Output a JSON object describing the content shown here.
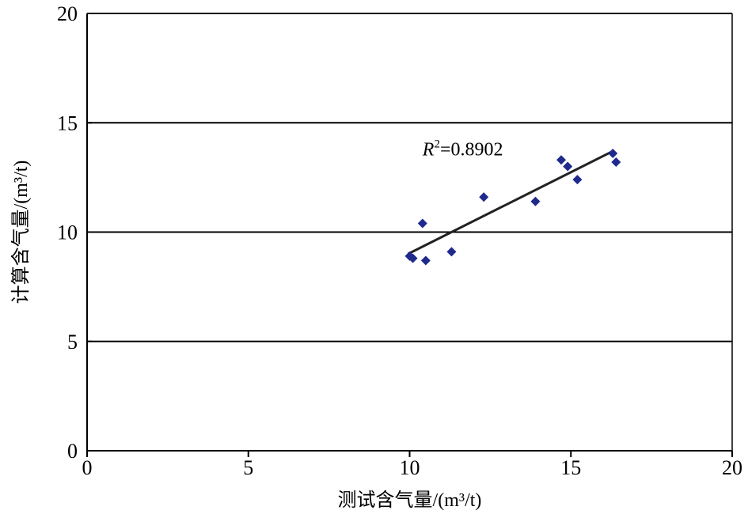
{
  "chart_data": {
    "type": "scatter",
    "title": "",
    "xlabel": "测试含气量/(m³/t)",
    "ylabel": "计算含气量/(m³/t)",
    "xlim": [
      0,
      20
    ],
    "ylim": [
      0,
      20
    ],
    "xticks": [
      "0",
      "5",
      "10",
      "15",
      "20"
    ],
    "yticks": [
      "0",
      "5",
      "10",
      "15",
      "20"
    ],
    "grid": "horizontal",
    "legend": "none",
    "point_color": "#1f2a8c",
    "series": [
      {
        "points": [
          {
            "x": 10.0,
            "y": 8.9
          },
          {
            "x": 10.1,
            "y": 8.8
          },
          {
            "x": 10.4,
            "y": 10.4
          },
          {
            "x": 10.5,
            "y": 8.7
          },
          {
            "x": 11.3,
            "y": 9.1
          },
          {
            "x": 12.3,
            "y": 11.6
          },
          {
            "x": 13.9,
            "y": 11.4
          },
          {
            "x": 14.7,
            "y": 13.3
          },
          {
            "x": 14.9,
            "y": 13.0
          },
          {
            "x": 15.2,
            "y": 12.4
          },
          {
            "x": 16.3,
            "y": 13.6
          },
          {
            "x": 16.4,
            "y": 13.2
          }
        ]
      }
    ],
    "trendline": {
      "x": [
        9.95,
        16.3
      ],
      "y": [
        9.0,
        13.7
      ],
      "color": "#222222"
    },
    "annotation": {
      "italic": "R",
      "sup": "2",
      "value": "=0.8902",
      "x": 10.4,
      "y": 13.5
    }
  }
}
